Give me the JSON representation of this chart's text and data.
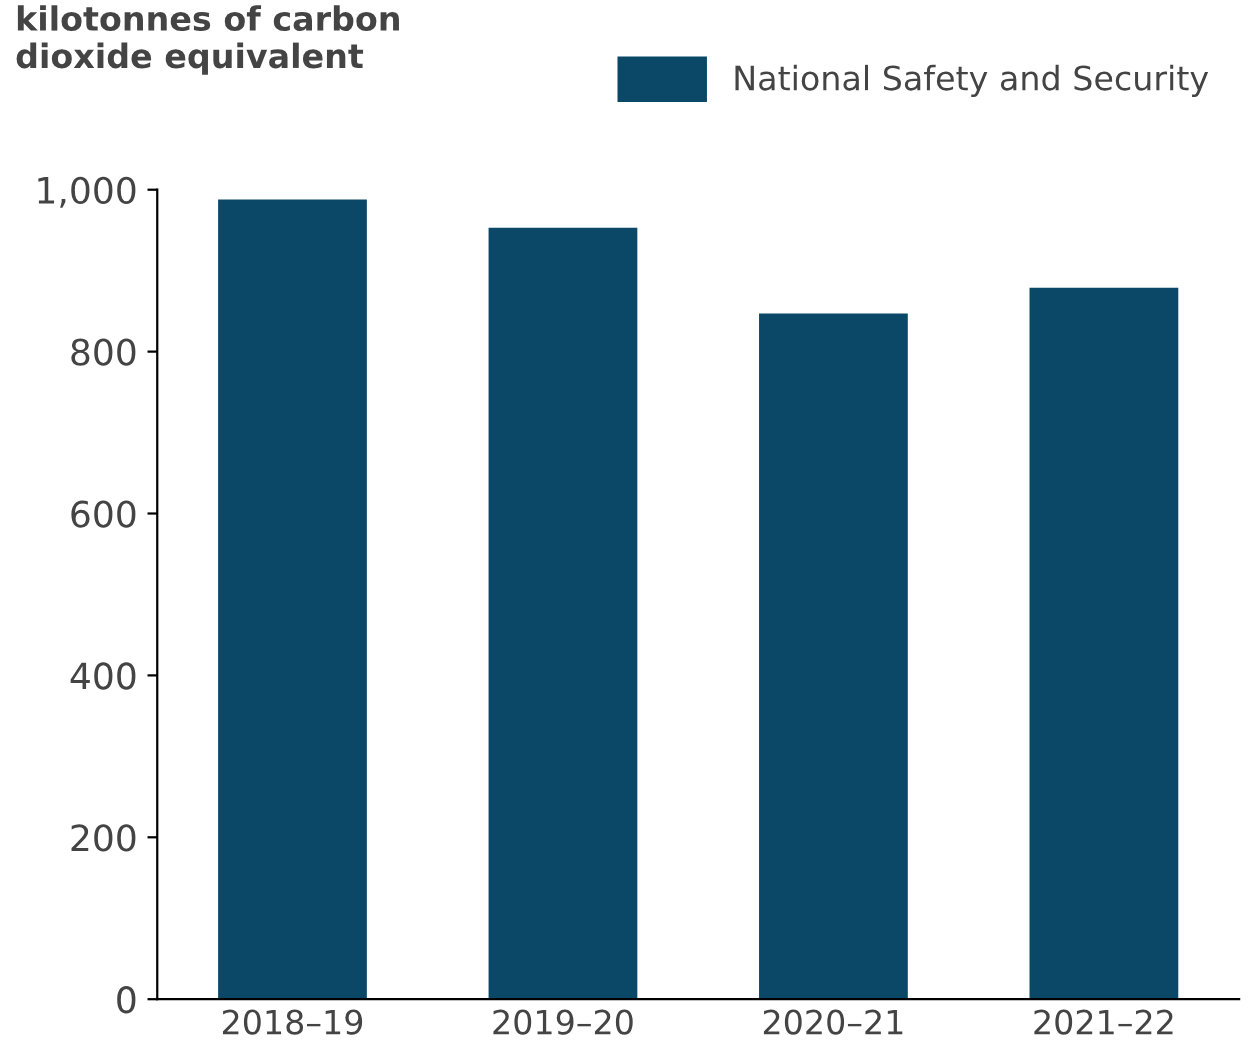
{
  "chart_data": {
    "type": "bar",
    "ylabel": "kilotonnes of carbon\ndioxide equivalent",
    "categories": [
      "2018–19",
      "2019–20",
      "2020–21",
      "2021–22"
    ],
    "series": [
      {
        "name": "National Safety and Security",
        "color": "#0b4868",
        "values": [
          988,
          953,
          847,
          879
        ]
      }
    ],
    "ylim": [
      0,
      1000
    ],
    "yticks": [
      0,
      200,
      400,
      600,
      800,
      {
        "value": 1000,
        "label": "1,000"
      }
    ],
    "grid": false,
    "legend": "top right"
  }
}
